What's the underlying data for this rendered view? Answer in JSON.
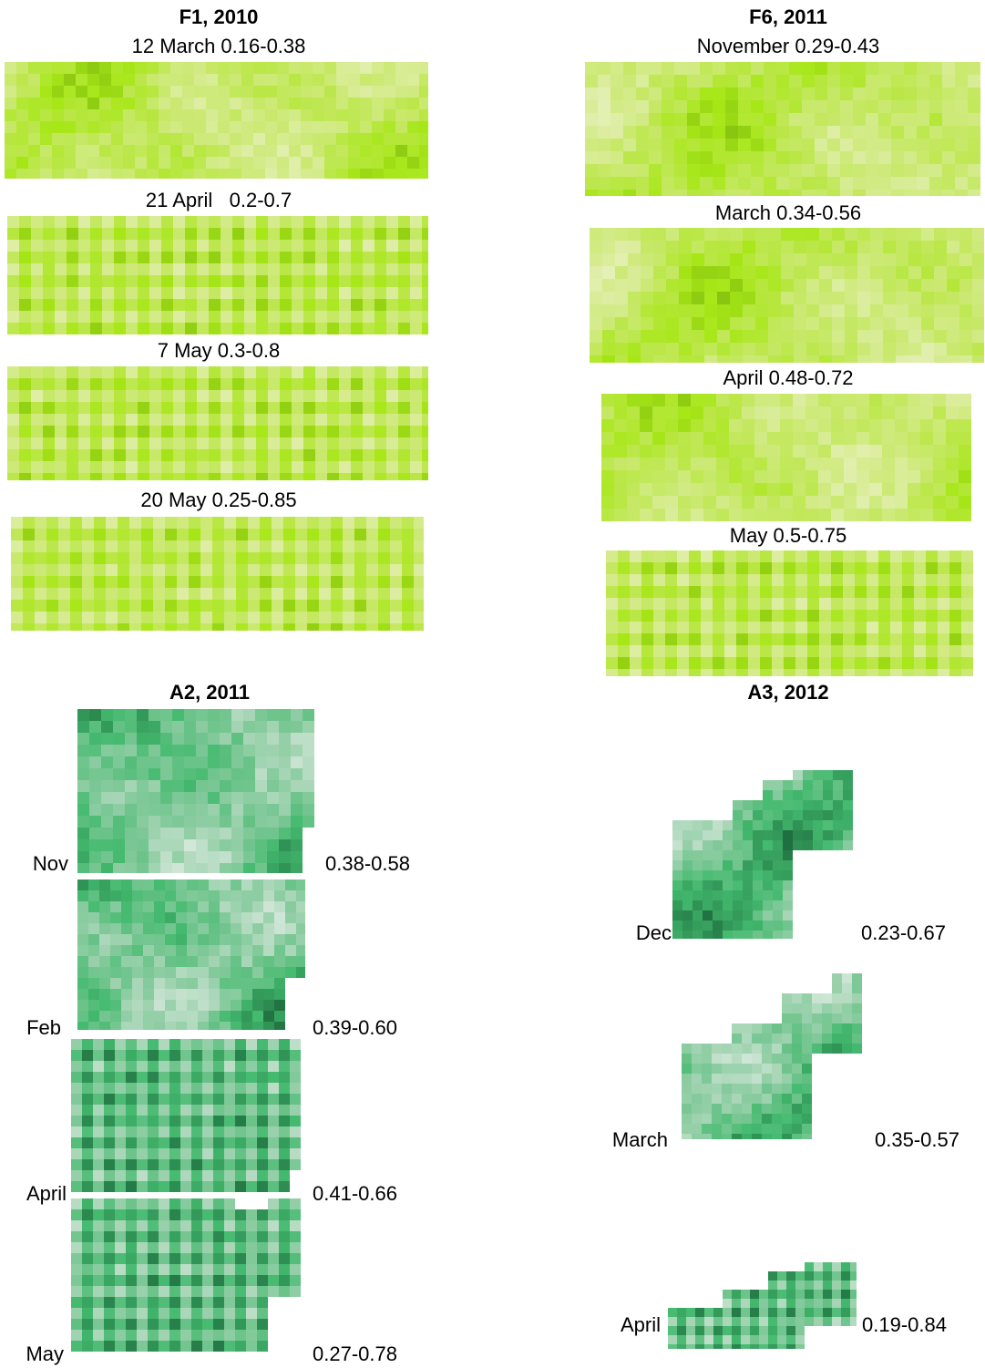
{
  "panels": [
    {
      "title": "F1, 2010",
      "maps": [
        {
          "label": "12 March 0.16-0.38"
        },
        {
          "label": "21 April   0.2-0.7"
        },
        {
          "label": "7 May 0.3-0.8"
        },
        {
          "label": "20 May 0.25-0.85"
        }
      ]
    },
    {
      "title": "F6, 2011",
      "maps": [
        {
          "label": "November 0.29-0.43"
        },
        {
          "label": "March 0.34-0.56"
        },
        {
          "label": "April 0.48-0.72"
        },
        {
          "label": "May 0.5-0.75"
        }
      ]
    },
    {
      "title": "A2, 2011",
      "maps": [
        {
          "label": "Nov",
          "range": "0.38-0.58"
        },
        {
          "label": "Feb",
          "range": "0.39-0.60"
        },
        {
          "label": "April",
          "range": "0.41-0.66"
        },
        {
          "label": "May",
          "range": "0.27-0.78"
        }
      ]
    },
    {
      "title": "A3, 2012",
      "maps": [
        {
          "label": "Dec",
          "range": "0.23-0.67"
        },
        {
          "label": "March",
          "range": "0.35-0.57"
        },
        {
          "label": "April",
          "range": "0.19-0.84"
        }
      ]
    }
  ]
}
